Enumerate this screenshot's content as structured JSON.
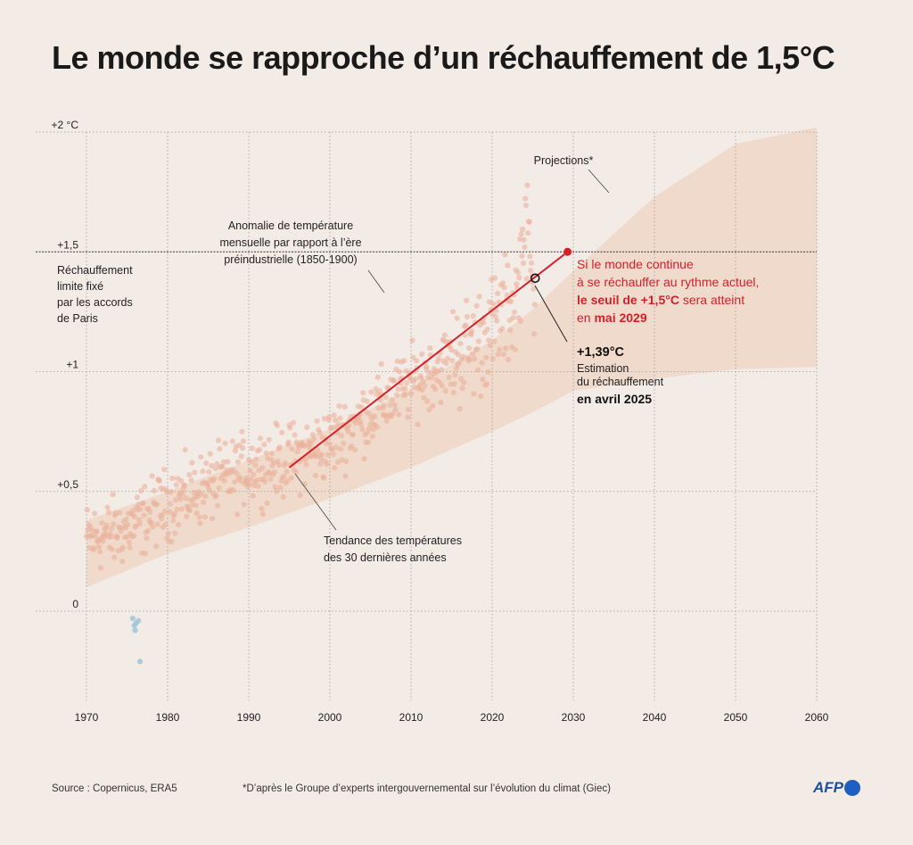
{
  "title": "Le monde se rapproche d’un réchauffement de 1,5°C",
  "footer": {
    "source": "Source : Copernicus, ERA5",
    "note": "*D’après le Groupe d’experts intergouvernemental sur l’évolution du climat (Giec)",
    "logo": "AFP"
  },
  "colors": {
    "background": "#f3ebe6",
    "points": "#eab39c",
    "points_negative": "#9fc6d8",
    "band": "#efd7c5",
    "trend": "#d3202a",
    "highlight_text": "#d3202a"
  },
  "chart_data": {
    "type": "scatter",
    "title": "Le monde se rapproche d’un réchauffement de 1,5°C",
    "xlim": [
      1970,
      2060
    ],
    "ylim": [
      -0.38,
      2.0
    ],
    "x_ticks": [
      "1970",
      "1980",
      "1990",
      "2000",
      "2010",
      "2020",
      "2030",
      "2040",
      "2050",
      "2060"
    ],
    "y_ticks": [
      {
        "value": 2.0,
        "label": "+2 °C"
      },
      {
        "value": 1.5,
        "label": "+1,5"
      },
      {
        "value": 1.0,
        "label": "+1"
      },
      {
        "value": 0.5,
        "label": "+0,5"
      },
      {
        "value": 0.0,
        "label": "0"
      }
    ],
    "grid": true,
    "threshold_line": {
      "value": 1.5,
      "label": "Réchauffement limite fixé par les accords de Paris",
      "label_lines": [
        "Réchauffement",
        "limite fixé",
        "par les accords",
        "de Paris"
      ]
    },
    "series": [
      {
        "name": "Anomalie de température mensuelle par rapport à l’ère préindustrielle (1850-1900)",
        "label_lines": [
          "Anomalie de température",
          "mensuelle par rapport à l’ère",
          "préindustrielle (1850-1900)"
        ],
        "kind": "monthly_points",
        "anchors": [
          [
            1970,
            0.3
          ],
          [
            1975,
            0.34
          ],
          [
            1980,
            0.45
          ],
          [
            1985,
            0.52
          ],
          [
            1990,
            0.6
          ],
          [
            1995,
            0.63
          ],
          [
            2000,
            0.7
          ],
          [
            2005,
            0.83
          ],
          [
            2010,
            0.95
          ],
          [
            2015,
            1.05
          ],
          [
            2020,
            1.17
          ],
          [
            2023,
            1.3
          ],
          [
            2024,
            1.55
          ],
          [
            2025,
            1.4
          ]
        ],
        "negative_points": [
          [
            1975.7,
            -0.03
          ],
          [
            1975.9,
            -0.06
          ],
          [
            1976.0,
            -0.08
          ],
          [
            1976.1,
            -0.05
          ],
          [
            1976.4,
            -0.04
          ],
          [
            1976.6,
            -0.21
          ]
        ]
      },
      {
        "name": "Tendance des températures des 30 dernières années",
        "label_lines": [
          "Tendance des températures",
          "des 30 dernières années"
        ],
        "kind": "trend",
        "x": [
          1995,
          2029.3
        ],
        "y": [
          0.6,
          1.5
        ]
      },
      {
        "name": "Projections*",
        "kind": "band",
        "x": [
          1970,
          1980,
          1990,
          2000,
          2010,
          2020,
          2025,
          2030,
          2040,
          2050,
          2060
        ],
        "lower": [
          0.1,
          0.24,
          0.35,
          0.47,
          0.6,
          0.75,
          0.83,
          0.92,
          0.97,
          1.01,
          1.02
        ],
        "upper": [
          0.38,
          0.5,
          0.63,
          0.76,
          0.93,
          1.13,
          1.26,
          1.42,
          1.73,
          1.95,
          2.02
        ]
      }
    ],
    "annotations": {
      "projections": "Projections*",
      "estimate": {
        "x": 2025.3,
        "y": 1.39,
        "value": "+1,39°C",
        "lines": [
          "Estimation",
          "du réchauffement"
        ],
        "date": "en avril 2025"
      },
      "threshold_reach": {
        "x": 2029.3,
        "y": 1.5,
        "line1": "Si le monde continue",
        "line2": "à se réchauffer au rythme actuel,",
        "line3_bold": "le seuil de +1,5°C",
        "line3_rest": " sera atteint",
        "line4_pre": "en ",
        "line4_bold": "mai 2029"
      }
    }
  }
}
